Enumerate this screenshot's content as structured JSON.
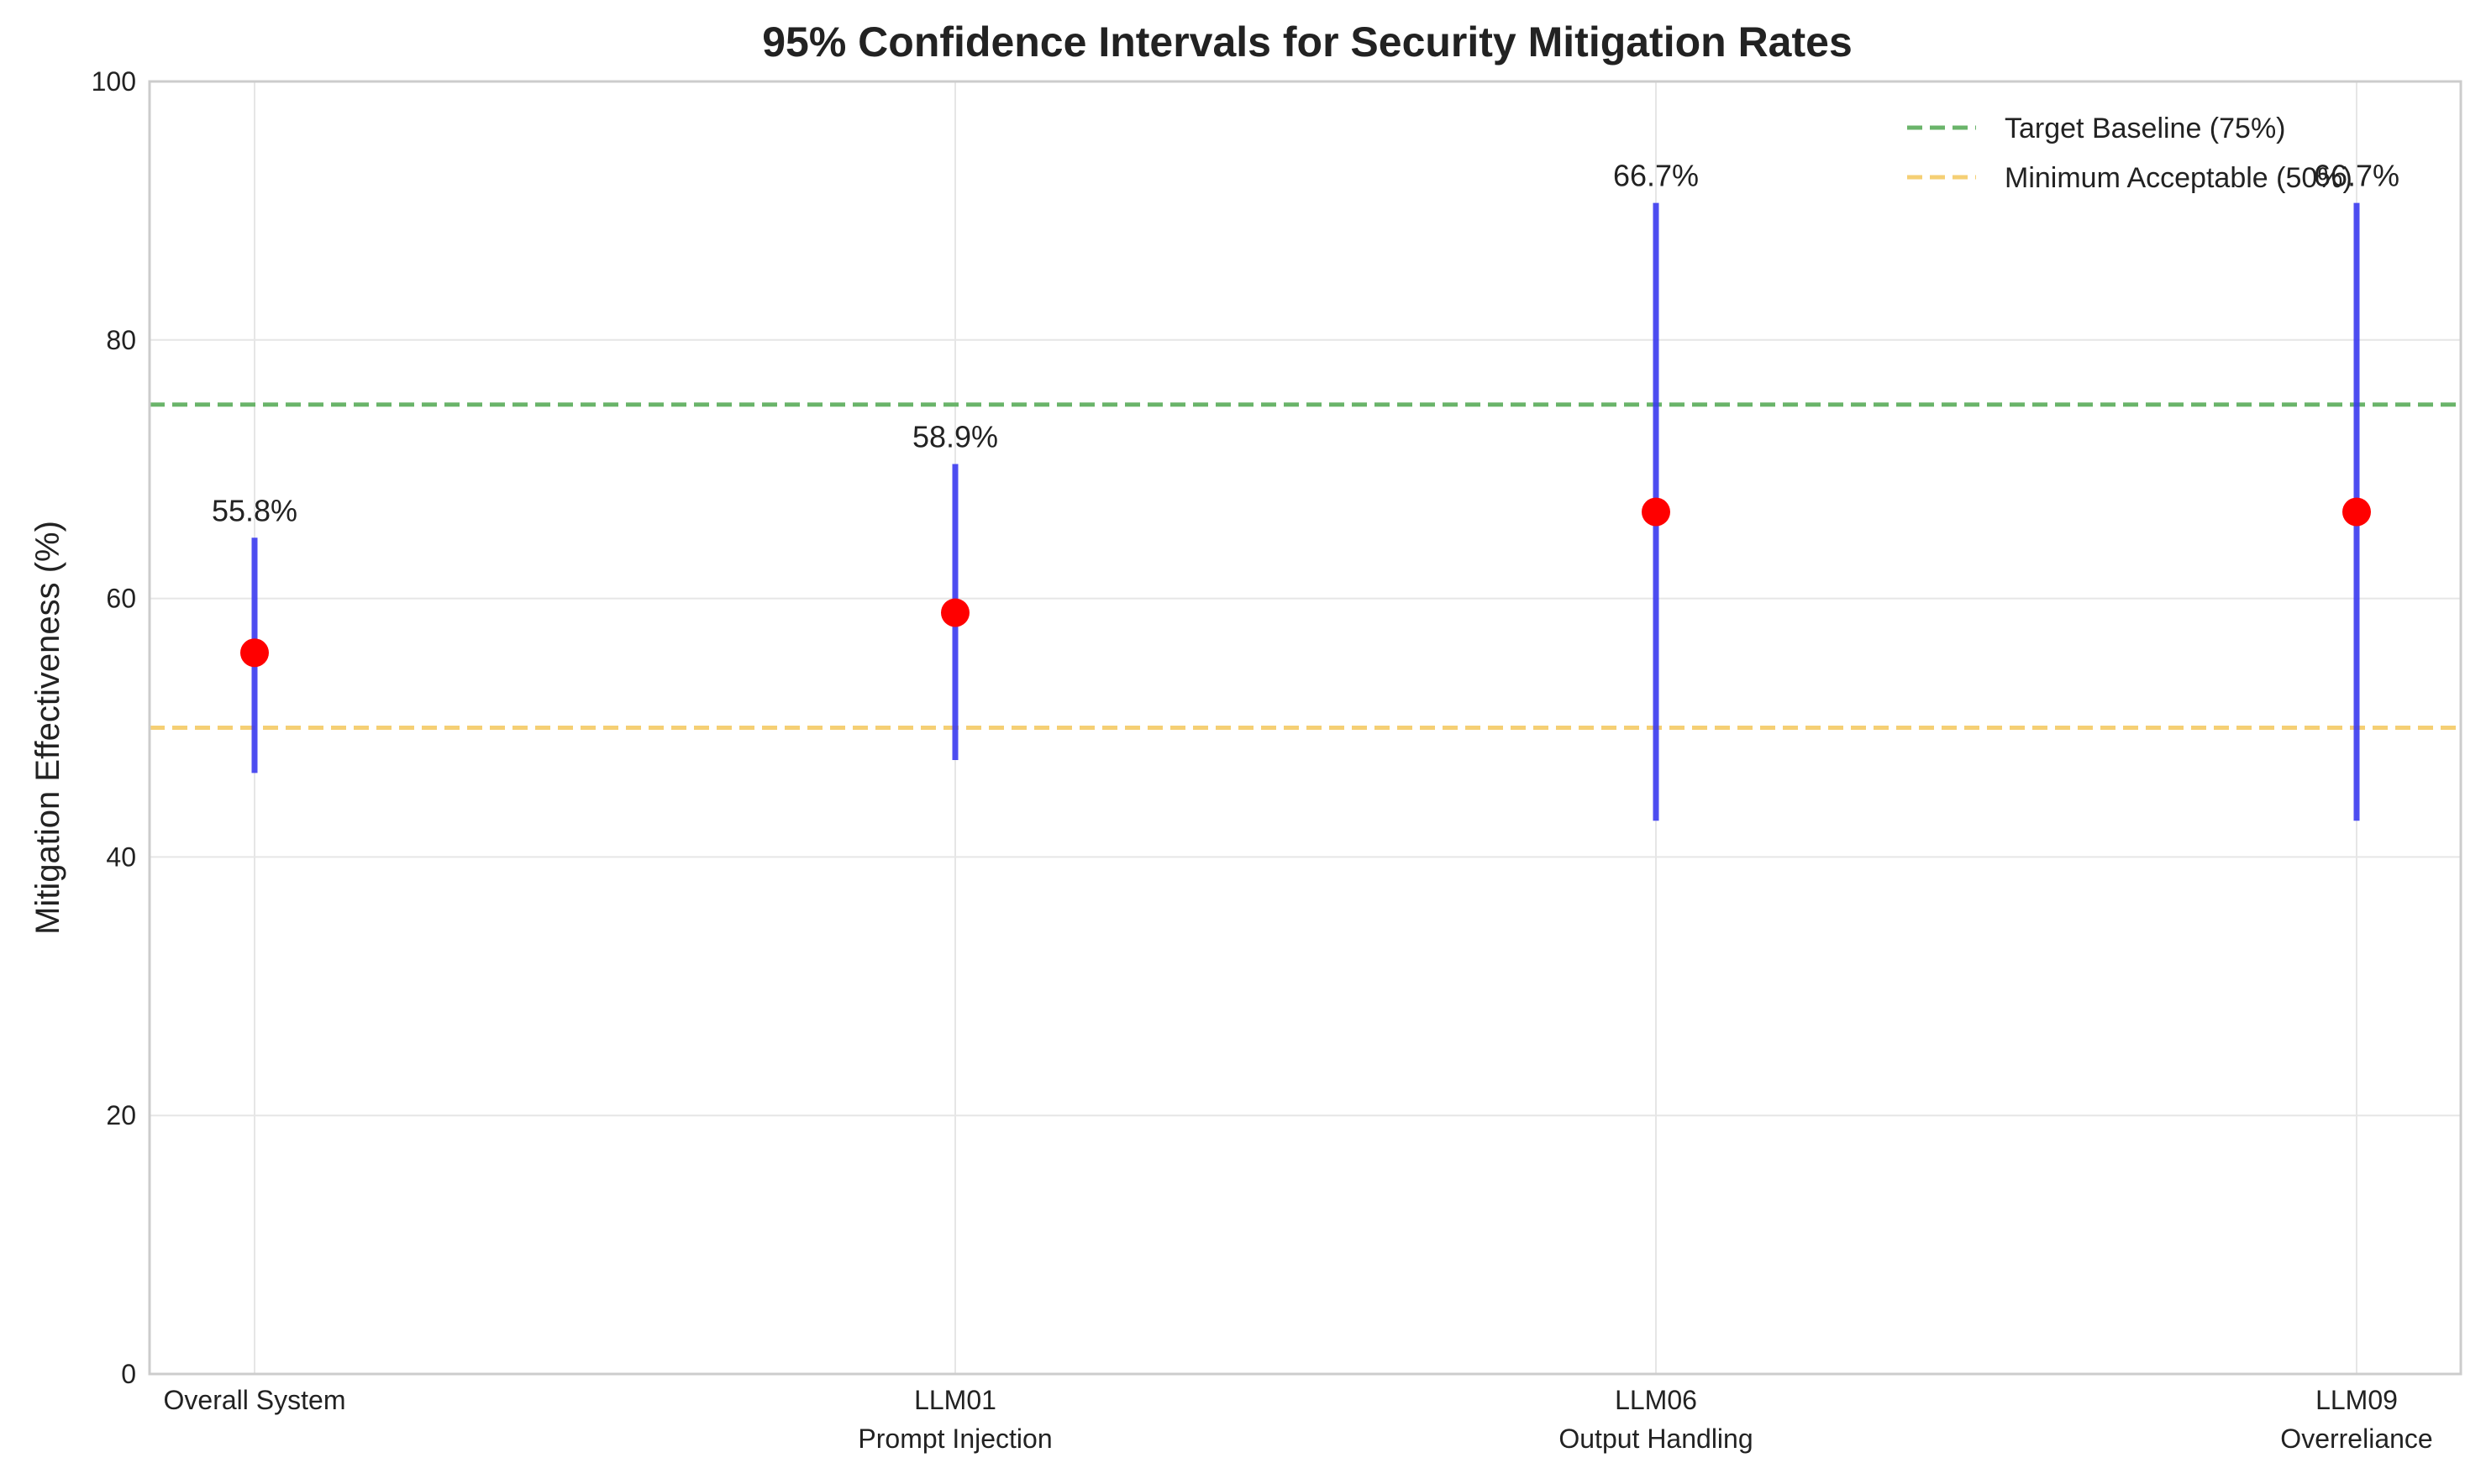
{
  "chart_data": {
    "type": "scatter",
    "title": "95% Confidence Intervals for Security Mitigation Rates",
    "xlabel": "",
    "ylabel": "Mitigation Effectiveness (%)",
    "ylim": [
      0,
      100
    ],
    "yticks": [
      "0",
      "20",
      "40",
      "60",
      "80",
      "100"
    ],
    "grid": true,
    "legend_position": "top-right",
    "categories": [
      {
        "line1": "Overall System",
        "line2": ""
      },
      {
        "line1": "LLM01",
        "line2": "Prompt Injection"
      },
      {
        "line1": "LLM06",
        "line2": "Output Handling"
      },
      {
        "line1": "LLM09",
        "line2": "Overreliance"
      }
    ],
    "points": [
      {
        "value": 55.8,
        "ci_low": 46.5,
        "ci_high": 64.7,
        "label": "55.8%"
      },
      {
        "value": 58.9,
        "ci_low": 47.5,
        "ci_high": 70.4,
        "label": "58.9%"
      },
      {
        "value": 66.7,
        "ci_low": 42.8,
        "ci_high": 90.6,
        "label": "66.7%"
      },
      {
        "value": 66.7,
        "ci_low": 42.8,
        "ci_high": 90.6,
        "label": "66.7%"
      }
    ],
    "reference_lines": [
      {
        "name": "Target Baseline (75%)",
        "value": 75,
        "color": "#6ab46a"
      },
      {
        "name": "Minimum Acceptable (50%)",
        "value": 50,
        "color": "#f5cf74"
      }
    ],
    "colors": {
      "point": "#ff0000",
      "interval": "#3b3bf0",
      "grid": "#e6e6e6",
      "axis": "#cccccc"
    }
  }
}
